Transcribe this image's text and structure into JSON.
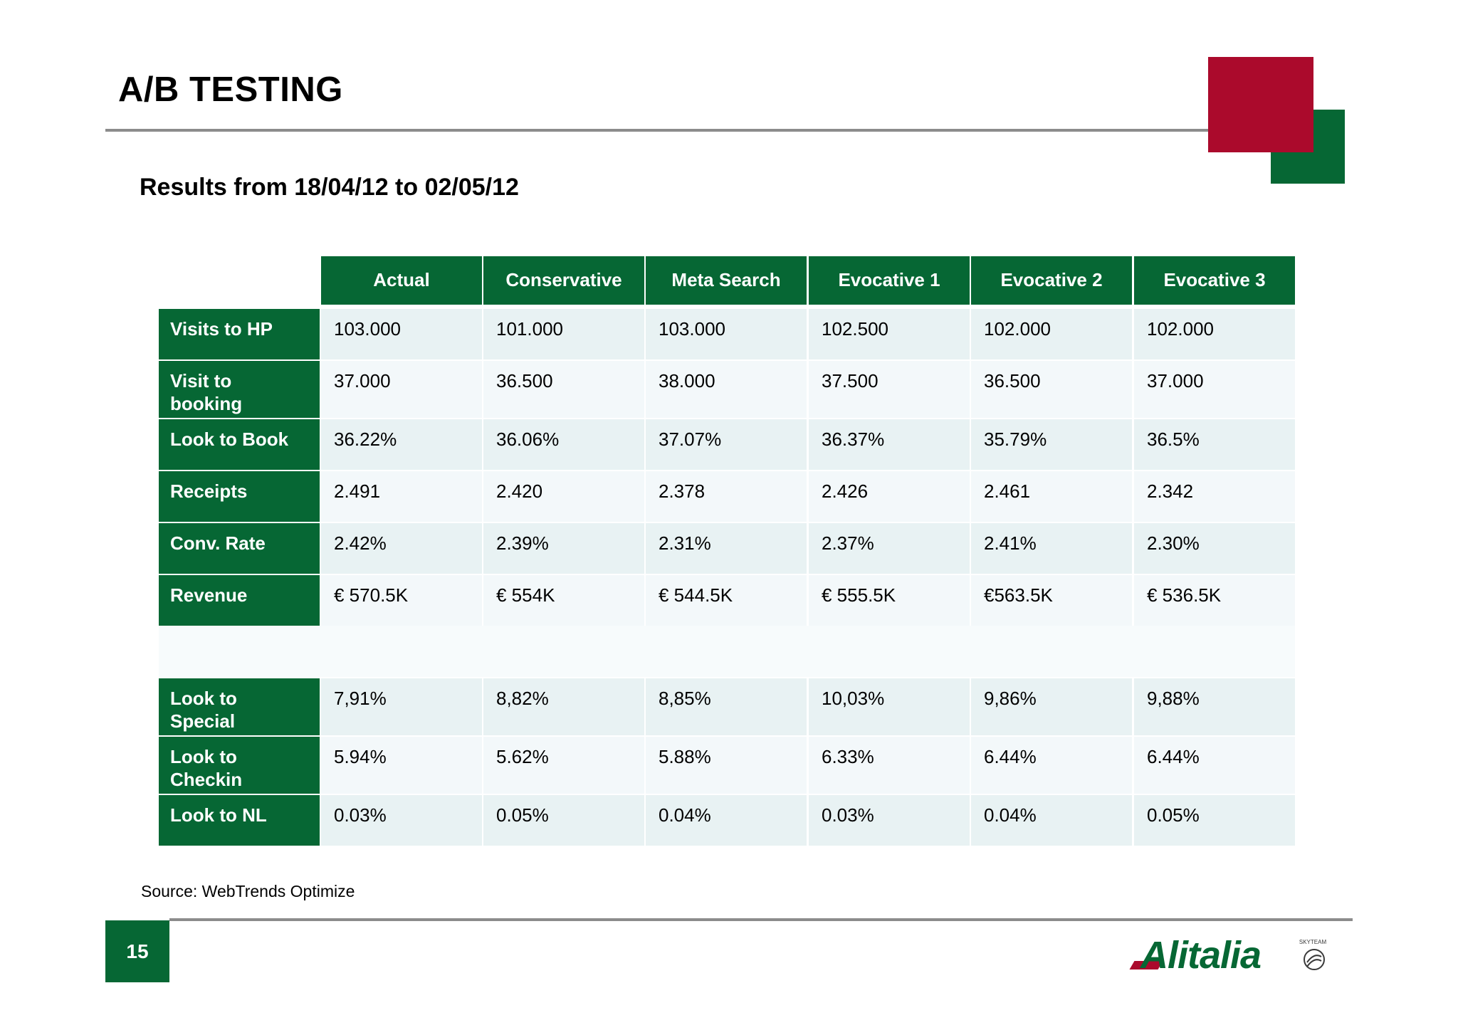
{
  "slide": {
    "title": "A/B TESTING",
    "subtitle": "Results from 18/04/12 to 02/05/12",
    "source": "Source: WebTrends Optimize",
    "page_number": "15",
    "logo_text": "Alitalia",
    "logo_badge": "SKYTEAM"
  },
  "colors": {
    "green": "#066734",
    "red": "#ab0a2c",
    "rule_gray": "#8c8c8c"
  },
  "table": {
    "columns": [
      "Actual",
      "Conservative",
      "Meta Search",
      "Evocative 1",
      "Evocative 2",
      "Evocative 3"
    ],
    "rows": [
      {
        "label": "Visits to HP",
        "values": [
          "103.000",
          "101.000",
          "103.000",
          "102.500",
          "102.000",
          "102.000"
        ]
      },
      {
        "label": "Visit to booking",
        "values": [
          "37.000",
          "36.500",
          "38.000",
          "37.500",
          "36.500",
          "37.000"
        ]
      },
      {
        "label": "Look to Book",
        "values": [
          "36.22%",
          "36.06%",
          "37.07%",
          "36.37%",
          "35.79%",
          "36.5%"
        ]
      },
      {
        "label": "Receipts",
        "values": [
          "2.491",
          "2.420",
          "2.378",
          "2.426",
          "2.461",
          "2.342"
        ]
      },
      {
        "label": "Conv. Rate",
        "values": [
          "2.42%",
          "2.39%",
          "2.31%",
          "2.37%",
          "2.41%",
          "2.30%"
        ]
      },
      {
        "label": "Revenue",
        "values": [
          "€ 570.5K",
          "€ 554K",
          "€ 544.5K",
          "€ 555.5K",
          "€563.5K",
          "€ 536.5K"
        ]
      },
      {
        "label": "Look to Special Offers",
        "values": [
          "7,91%",
          "8,82%",
          "8,85%",
          "10,03%",
          "9,86%",
          "9,88%"
        ]
      },
      {
        "label": "Look to Checkin",
        "values": [
          "5.94%",
          "5.62%",
          "5.88%",
          "6.33%",
          "6.44%",
          "6.44%"
        ]
      },
      {
        "label": "Look to NL",
        "values": [
          "0.03%",
          "0.05%",
          "0.04%",
          "0.03%",
          "0.04%",
          "0.05%"
        ]
      }
    ]
  }
}
